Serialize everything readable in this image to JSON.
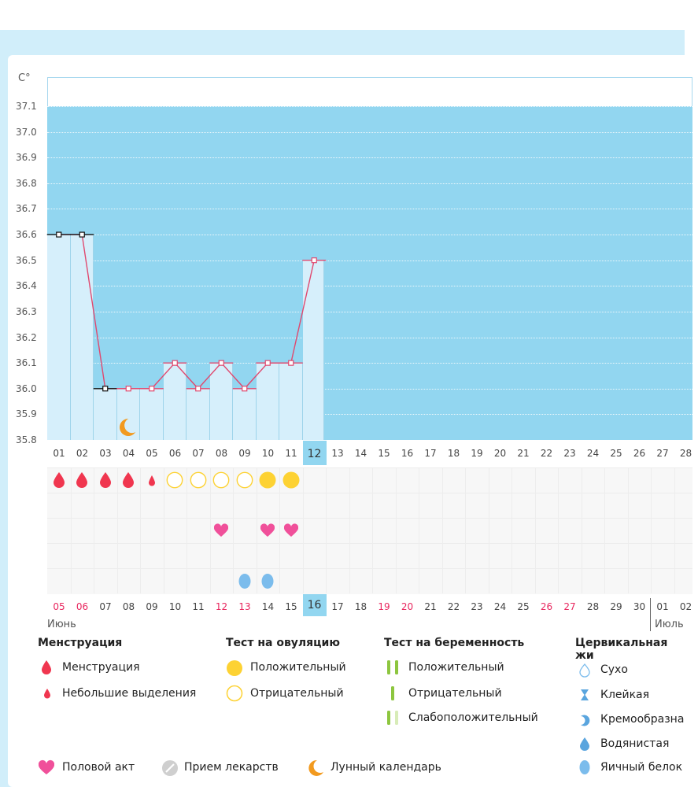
{
  "chart_data": {
    "type": "line",
    "y_unit": "C°",
    "ylim": [
      35.8,
      37.1
    ],
    "y_ticks": [
      "37.1",
      "37.0",
      "36.9",
      "36.8",
      "36.7",
      "36.6",
      "36.5",
      "36.4",
      "36.3",
      "36.2",
      "36.1",
      "36.0",
      "35.9",
      "35.8"
    ],
    "cycle_days": [
      "01",
      "02",
      "03",
      "04",
      "05",
      "06",
      "07",
      "08",
      "09",
      "10",
      "11",
      "12",
      "13",
      "14",
      "15",
      "16",
      "17",
      "18",
      "19",
      "20",
      "21",
      "22",
      "23",
      "24",
      "25",
      "26",
      "27",
      "28"
    ],
    "current_cycle_day": "12",
    "temperatures": [
      36.6,
      36.6,
      36.0,
      36.0,
      36.0,
      36.1,
      36.0,
      36.1,
      36.0,
      36.1,
      36.1,
      36.5
    ],
    "marker_colors": [
      "black",
      "black",
      "black",
      "pink",
      "pink",
      "pink",
      "pink",
      "pink",
      "pink",
      "pink",
      "pink",
      "pink"
    ],
    "dates": [
      "05",
      "06",
      "07",
      "08",
      "09",
      "10",
      "11",
      "12",
      "13",
      "14",
      "15",
      "16",
      "17",
      "18",
      "19",
      "20",
      "21",
      "22",
      "23",
      "24",
      "25",
      "26",
      "27",
      "28",
      "29",
      "30",
      "01",
      "02"
    ],
    "weekend_dates": [
      0,
      1,
      7,
      8,
      14,
      15,
      21,
      22
    ],
    "current_date_index": 11,
    "months": [
      "Июнь",
      "Июль"
    ]
  },
  "events": {
    "menstruation": [
      "heavy",
      "heavy",
      "heavy",
      "heavy",
      "light"
    ],
    "ovulation_tests": [
      "negative",
      "negative",
      "negative",
      "negative",
      "positive",
      "positive"
    ],
    "intercourse_days": [
      8,
      10,
      11
    ],
    "mucus_days": [
      9,
      10
    ],
    "moon_day": 4
  },
  "legend": {
    "menstruation": {
      "title": "Менструация",
      "items": [
        "Менструация",
        "Небольшие выделения"
      ]
    },
    "ovulation": {
      "title": "Тест на овуляцию",
      "items": [
        "Положительный",
        "Отрицательный"
      ]
    },
    "pregnancy": {
      "title": "Тест на беременность",
      "items": [
        "Положительный",
        "Отрицательный",
        "Слабоположительный"
      ]
    },
    "cervical": {
      "title": "Цервикальная жи",
      "items": [
        "Сухо",
        "Клейкая",
        "Кремообразна",
        "Водянистая",
        "Яичный белок"
      ]
    },
    "bottom": [
      "Половой акт",
      "Прием лекарств",
      "Лунный календарь"
    ]
  },
  "colors": {
    "plot_bg": "#92d6f0",
    "column": "#d6effb",
    "line": "#e0496f",
    "drop": "#f0364f",
    "ovu": "#fdd233",
    "heart": "#f0509a",
    "mucus": "#7bbcec",
    "moon": "#f29a1f",
    "green": "#8dc63f"
  }
}
